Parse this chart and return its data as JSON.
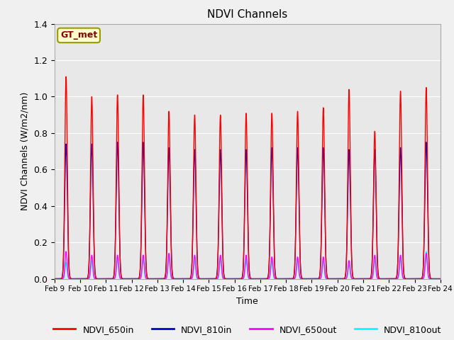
{
  "title": "NDVI Channels",
  "xlabel": "Time",
  "ylabel": "NDVI Channels (W/m2/nm)",
  "ylim": [
    0.0,
    1.4
  ],
  "background_color": "#f0f0f0",
  "axes_bg_color": "#e8e8e8",
  "grid_color": "white",
  "annotation_text": "GT_met",
  "annotation_bg": "#ffffcc",
  "annotation_border": "#999900",
  "legend_entries": [
    "NDVI_650in",
    "NDVI_810in",
    "NDVI_650out",
    "NDVI_810out"
  ],
  "line_colors": [
    "red",
    "#0000cc",
    "#ff00ff",
    "cyan"
  ],
  "peak_days": [
    9,
    10,
    11,
    12,
    13,
    14,
    15,
    16,
    17,
    18,
    19,
    20,
    21,
    22,
    23
  ],
  "peak_heights_650in": [
    1.11,
    1.0,
    1.01,
    1.01,
    0.92,
    0.9,
    0.9,
    0.91,
    0.91,
    0.92,
    0.94,
    1.04,
    0.81,
    1.03,
    1.05
  ],
  "peak_heights_810in": [
    0.74,
    0.74,
    0.75,
    0.75,
    0.72,
    0.71,
    0.71,
    0.71,
    0.72,
    0.72,
    0.72,
    0.71,
    0.71,
    0.72,
    0.75
  ],
  "peak_heights_650out": [
    0.15,
    0.13,
    0.13,
    0.13,
    0.14,
    0.13,
    0.13,
    0.13,
    0.12,
    0.12,
    0.12,
    0.1,
    0.13,
    0.13,
    0.14
  ],
  "peak_heights_810out": [
    0.09,
    0.1,
    0.11,
    0.11,
    0.12,
    0.1,
    0.11,
    0.11,
    0.1,
    0.1,
    0.1,
    0.08,
    0.1,
    0.11,
    0.15
  ],
  "xtick_labels": [
    "Feb 9",
    "Feb 10",
    "Feb 11",
    "Feb 12",
    "Feb 13",
    "Feb 14",
    "Feb 15",
    "Feb 16",
    "Feb 17",
    "Feb 18",
    "Feb 19",
    "Feb 20",
    "Feb 21",
    "Feb 22",
    "Feb 23",
    "Feb 24"
  ],
  "xtick_positions": [
    9,
    10,
    11,
    12,
    13,
    14,
    15,
    16,
    17,
    18,
    19,
    20,
    21,
    22,
    23,
    24
  ],
  "ytick_positions": [
    0.0,
    0.2,
    0.4,
    0.6,
    0.8,
    1.0,
    1.2,
    1.4
  ]
}
